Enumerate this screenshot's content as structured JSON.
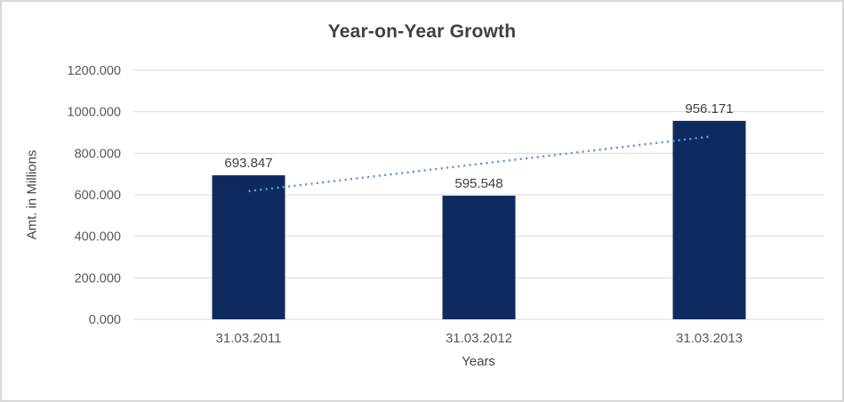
{
  "chart_data": {
    "type": "bar",
    "title": "Year-on-Year Growth",
    "xlabel": "Years",
    "ylabel": "Amt. in Millions",
    "categories": [
      "31.03.2011",
      "31.03.2012",
      "31.03.2013"
    ],
    "values": [
      693.847,
      595.548,
      956.171
    ],
    "value_labels": [
      "693.847",
      "595.548",
      "956.171"
    ],
    "yticks": [
      0,
      200,
      400,
      600,
      800,
      1000,
      1200
    ],
    "ytick_labels": [
      "0.000",
      "200.000",
      "400.000",
      "600.000",
      "800.000",
      "1000.000",
      "1200.000"
    ],
    "ylim": [
      0,
      1200
    ],
    "grid": true,
    "legend": "none",
    "trendline": {
      "type": "linear",
      "style": "dotted"
    }
  },
  "colors": {
    "bar": "#0E2A5E",
    "trendline": "#5B9BD5",
    "gridline": "#D9D9D9",
    "title_text": "#404040",
    "axis_text": "#595959",
    "data_label_text": "#404040",
    "frame_border": "#D8D8D8",
    "background": "#FFFFFF"
  }
}
